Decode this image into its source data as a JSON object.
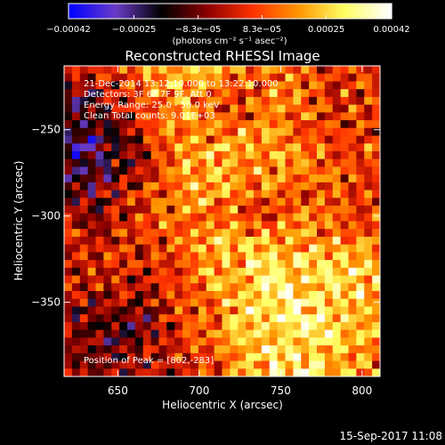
{
  "chart_data": {
    "type": "heatmap",
    "title": "Reconstructed RHESSI Image",
    "xlabel": "Heliocentric X (arcsec)",
    "ylabel": "Heliocentric Y (arcsec)",
    "xlim": [
      617,
      811
    ],
    "ylim": [
      -393,
      -213
    ],
    "x_ticks": [
      650,
      700,
      750,
      800
    ],
    "x_tick_labels": [
      "650",
      "700",
      "750",
      "800"
    ],
    "y_ticks": [
      -250,
      -300,
      -350
    ],
    "y_tick_labels": [
      "−250",
      "−300",
      "−350"
    ],
    "colorbar": {
      "range": [
        -0.00042,
        0.00042
      ],
      "tick_values": [
        -0.00042,
        -0.00025,
        -8.3e-05,
        8.3e-05,
        0.00025,
        0.00042
      ],
      "tick_labels": [
        "−0.00042",
        "−0.00025",
        "−8.3e−05",
        "8.3e−05",
        "0.00025",
        "0.00042"
      ],
      "unit_label": "(photons cm⁻² s⁻¹ asec⁻²)",
      "colors": [
        "#0000ff",
        "#6a3cc8",
        "#000000",
        "#8b0000",
        "#ff3200",
        "#ff9600",
        "#ffff64",
        "#ffffff"
      ]
    },
    "annotations": [
      "21-Dec-2014 13:12:10.000 to 13:22:10.000",
      "Detectors: 3F 6F 7F 9F, Att 0",
      "Energy Range: 25.0 - 50.0 keV",
      "Clean     Total counts: 9.01E+03"
    ],
    "peak_label": "Position of Peak = [802,-283]",
    "peak_position": [
      802,
      -283
    ],
    "pixel_grid": [
      40,
      40
    ]
  },
  "footer": {
    "timestamp": "15-Sep-2017 11:08"
  }
}
